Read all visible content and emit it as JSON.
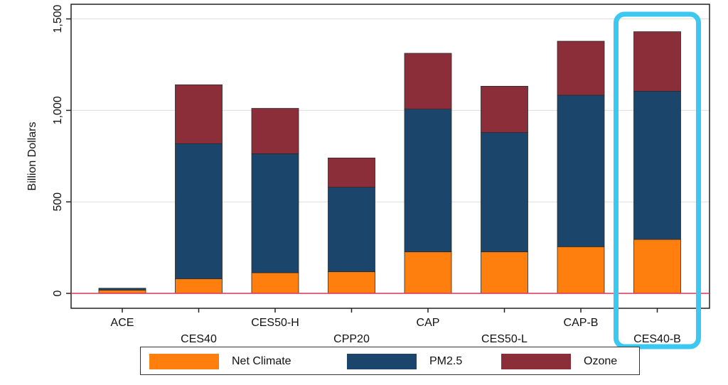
{
  "colors": {
    "net_climate": "#ff7f0e",
    "pm25": "#1c456b",
    "ozone": "#8b2e3a",
    "highlight": "#3cc8f0",
    "grid": "#dddddd",
    "zero_line": "#d6375a"
  },
  "chart_data": {
    "type": "bar",
    "stacked": true,
    "title": "",
    "xlabel": "",
    "ylabel": "Billion Dollars",
    "ylim": [
      0,
      1600
    ],
    "yticks": [
      0,
      500,
      1000,
      1500
    ],
    "ytick_labels": [
      "0",
      "500",
      "1,000",
      "1,500"
    ],
    "grid": true,
    "legend_position": "bottom",
    "categories": [
      "ACE",
      "CES40",
      "CES50-H",
      "CPP20",
      "CAP",
      "CES50-L",
      "CAP-B",
      "CES40-B"
    ],
    "series": [
      {
        "name": "Net Climate",
        "values": [
          18,
          80,
          113,
          118,
          227,
          227,
          255,
          295
        ]
      },
      {
        "name": "PM2.5",
        "values": [
          10,
          738,
          650,
          462,
          780,
          652,
          828,
          810
        ]
      },
      {
        "name": "Ozone",
        "values": [
          0,
          322,
          248,
          160,
          305,
          253,
          295,
          325
        ]
      }
    ],
    "highlighted_category": "CES40-B"
  }
}
